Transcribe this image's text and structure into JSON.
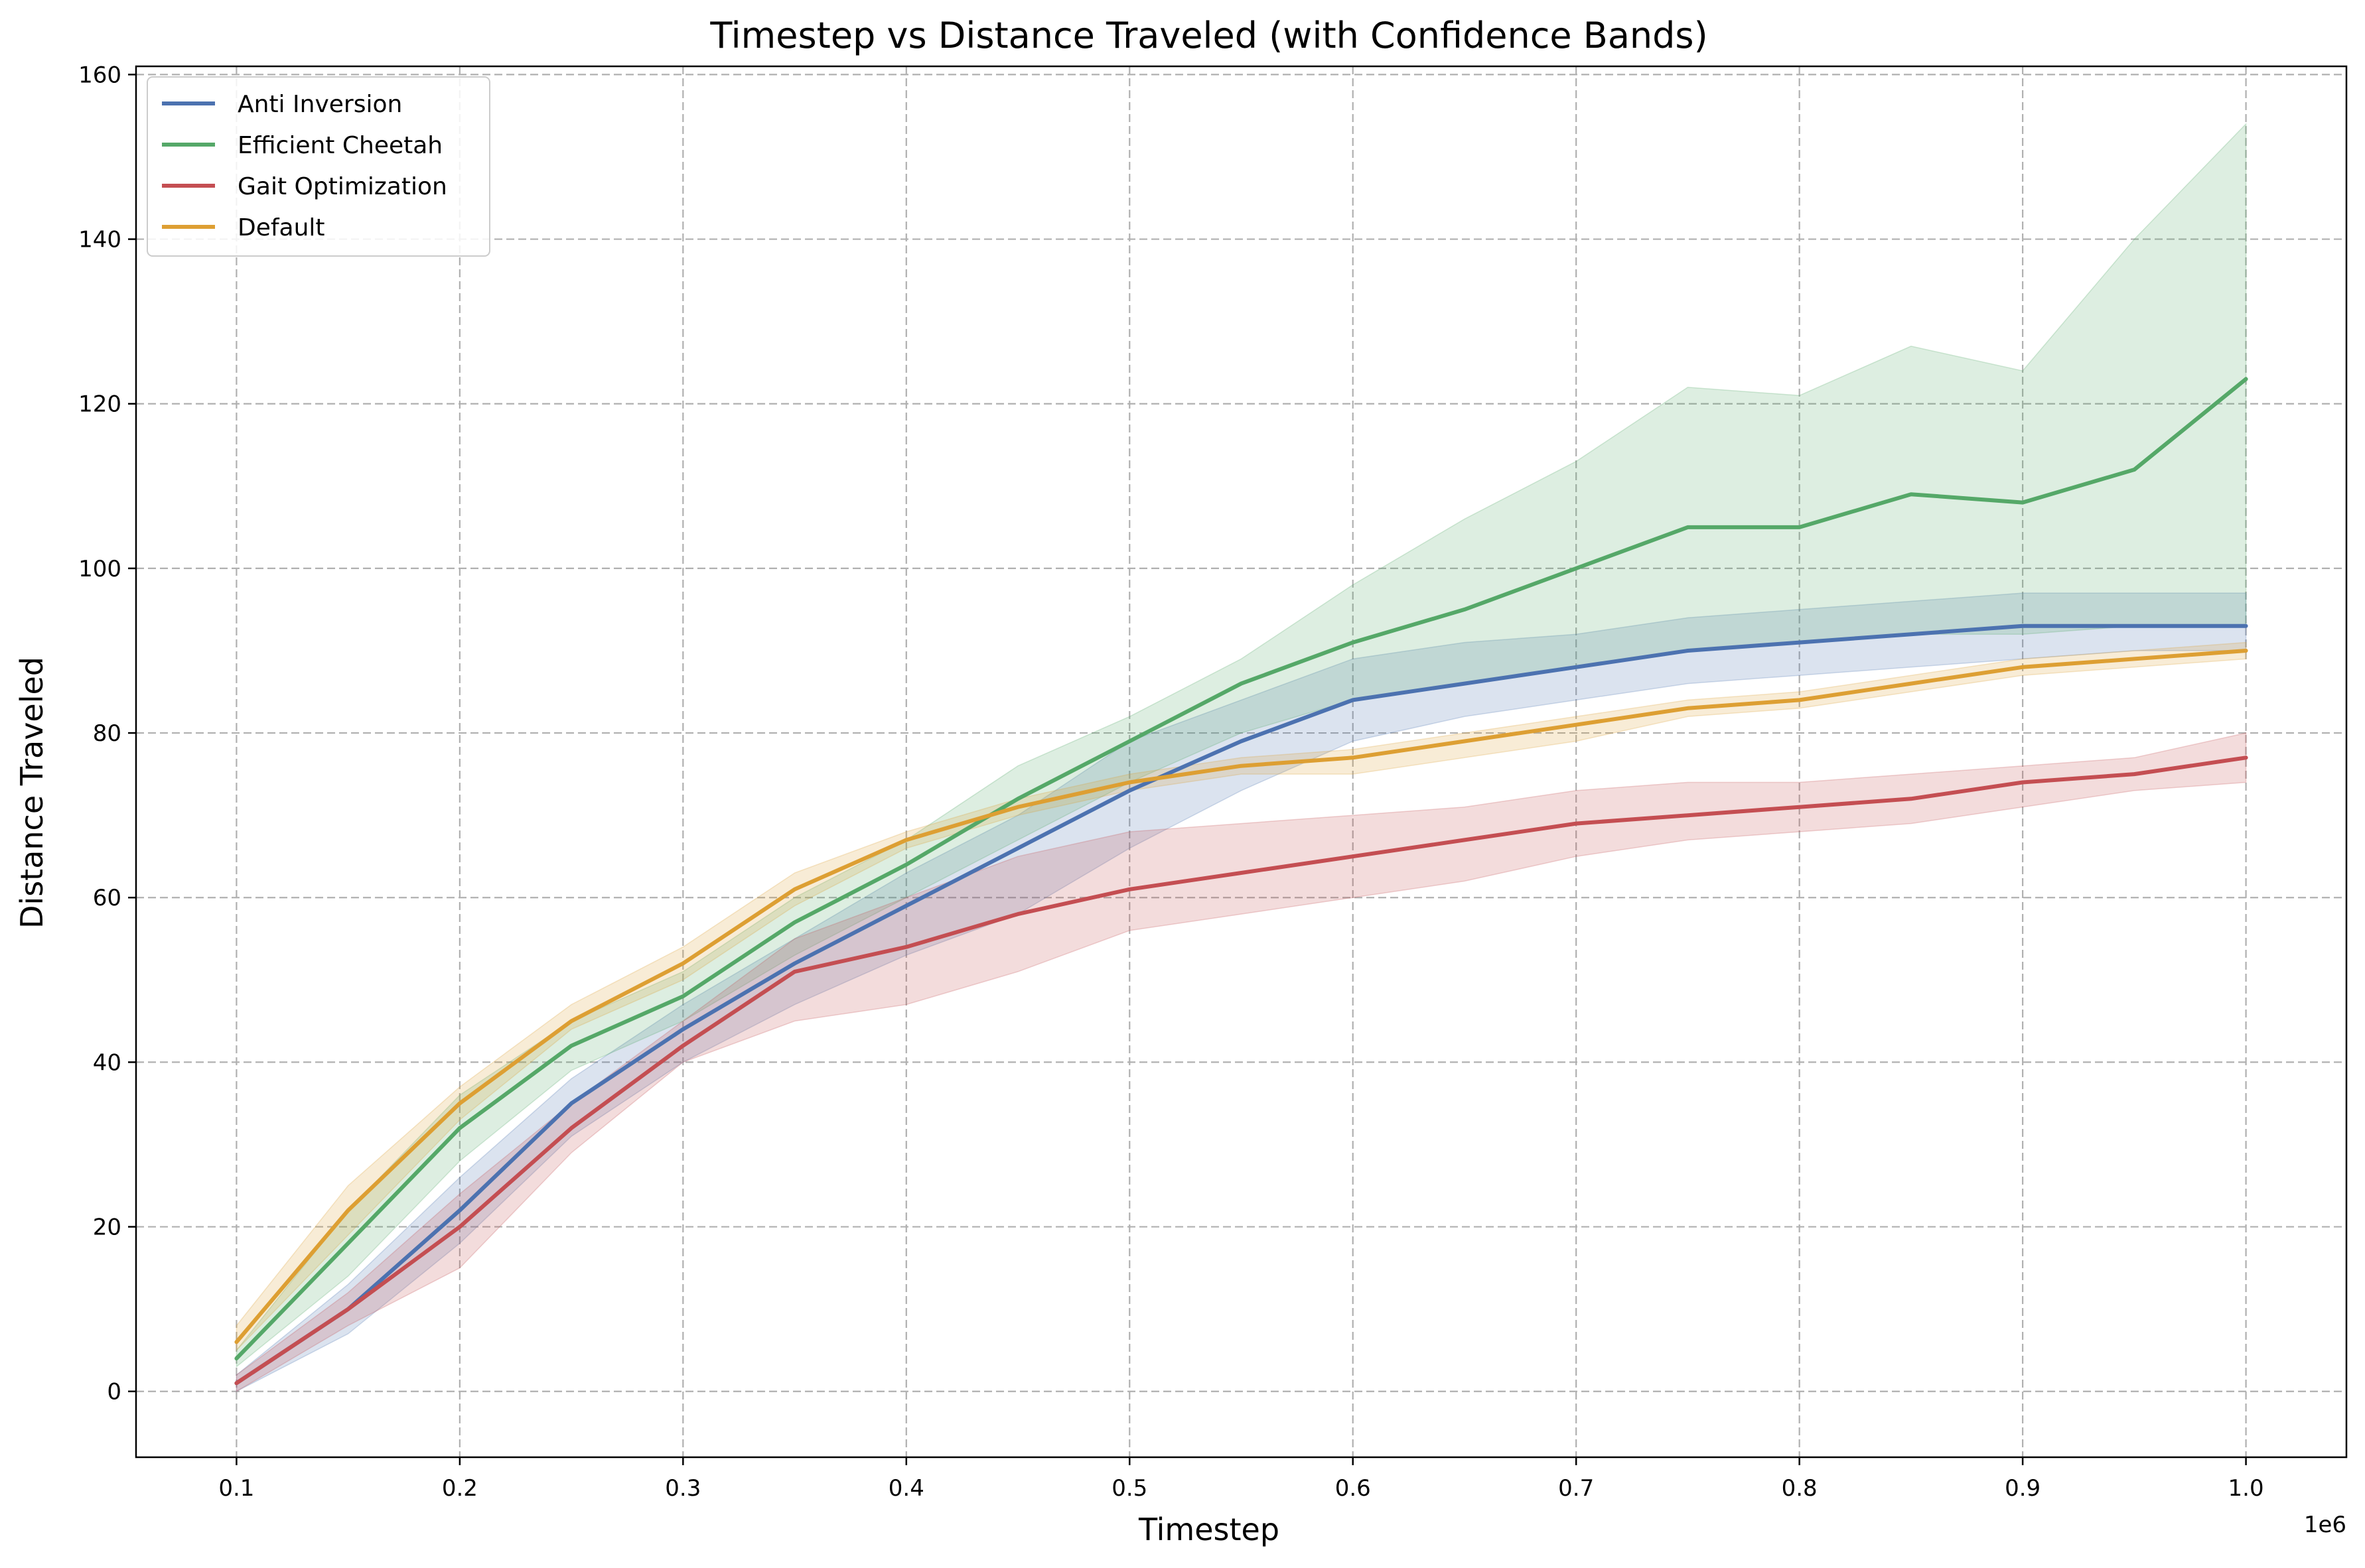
{
  "chart_data": {
    "type": "line",
    "title": "Timestep vs Distance Traveled (with Confidence Bands)",
    "xlabel": "Timestep",
    "ylabel": "Distance Traveled",
    "x_offset_label": "1e6",
    "xlim": [
      0.055,
      1.045
    ],
    "ylim": [
      -8,
      161
    ],
    "xticks": [
      0.1,
      0.2,
      0.3,
      0.4,
      0.5,
      0.6,
      0.7,
      0.8,
      0.9,
      1.0
    ],
    "xtick_labels": [
      "0.1",
      "0.2",
      "0.3",
      "0.4",
      "0.5",
      "0.6",
      "0.7",
      "0.8",
      "0.9",
      "1.0"
    ],
    "yticks": [
      0,
      20,
      40,
      60,
      80,
      100,
      120,
      140,
      160
    ],
    "ytick_labels": [
      "0",
      "20",
      "40",
      "60",
      "80",
      "100",
      "120",
      "140",
      "160"
    ],
    "grid": true,
    "grid_style": "dashed",
    "legend_position": "top-left",
    "x": [
      0.1,
      0.15,
      0.2,
      0.25,
      0.3,
      0.35,
      0.4,
      0.45,
      0.5,
      0.55,
      0.6,
      0.65,
      0.7,
      0.75,
      0.8,
      0.85,
      0.9,
      0.95,
      1.0
    ],
    "series": [
      {
        "name": "Anti Inversion",
        "color": "#4c72b0",
        "values": [
          1,
          10,
          22,
          35,
          44,
          52,
          59,
          66,
          73,
          79,
          84,
          86,
          88,
          90,
          91,
          92,
          93,
          93,
          93
        ],
        "lower": [
          0,
          7,
          18,
          31,
          40,
          47,
          53,
          58,
          66,
          73,
          79,
          82,
          84,
          86,
          87,
          88,
          89,
          90,
          90
        ],
        "upper": [
          2,
          13,
          26,
          38,
          47,
          55,
          63,
          70,
          79,
          84,
          89,
          91,
          92,
          94,
          95,
          96,
          97,
          97,
          97
        ]
      },
      {
        "name": "Efficient Cheetah",
        "color": "#55a868",
        "values": [
          4,
          18,
          32,
          42,
          48,
          57,
          64,
          72,
          79,
          86,
          91,
          95,
          100,
          105,
          105,
          109,
          108,
          112,
          123
        ],
        "lower": [
          3,
          14,
          28,
          39,
          45,
          53,
          60,
          67,
          74,
          80,
          84,
          86,
          88,
          90,
          91,
          92,
          92,
          93,
          93
        ],
        "upper": [
          5,
          22,
          36,
          45,
          51,
          60,
          67,
          76,
          82,
          89,
          98,
          106,
          113,
          122,
          121,
          127,
          124,
          140,
          154
        ]
      },
      {
        "name": "Gait Optimization",
        "color": "#c44e52",
        "values": [
          1,
          10,
          20,
          32,
          42,
          51,
          54,
          58,
          61,
          63,
          65,
          67,
          69,
          70,
          71,
          72,
          74,
          75,
          77
        ],
        "lower": [
          0,
          8,
          15,
          29,
          40,
          45,
          47,
          51,
          56,
          58,
          60,
          62,
          65,
          67,
          68,
          69,
          71,
          73,
          74
        ],
        "upper": [
          2,
          12,
          24,
          35,
          45,
          55,
          60,
          65,
          68,
          69,
          70,
          71,
          73,
          74,
          74,
          75,
          76,
          77,
          80
        ]
      },
      {
        "name": "Default",
        "color": "#dd9f33",
        "values": [
          6,
          22,
          35,
          45,
          52,
          61,
          67,
          71,
          74,
          76,
          77,
          79,
          81,
          83,
          84,
          86,
          88,
          89,
          90
        ],
        "lower": [
          5,
          19,
          33,
          44,
          50,
          59,
          66,
          70,
          73,
          75,
          75,
          77,
          79,
          82,
          83,
          85,
          87,
          88,
          89
        ],
        "upper": [
          8,
          25,
          37,
          47,
          54,
          63,
          68,
          72,
          75,
          77,
          78,
          80,
          82,
          84,
          85,
          87,
          89,
          90,
          91
        ]
      }
    ]
  }
}
